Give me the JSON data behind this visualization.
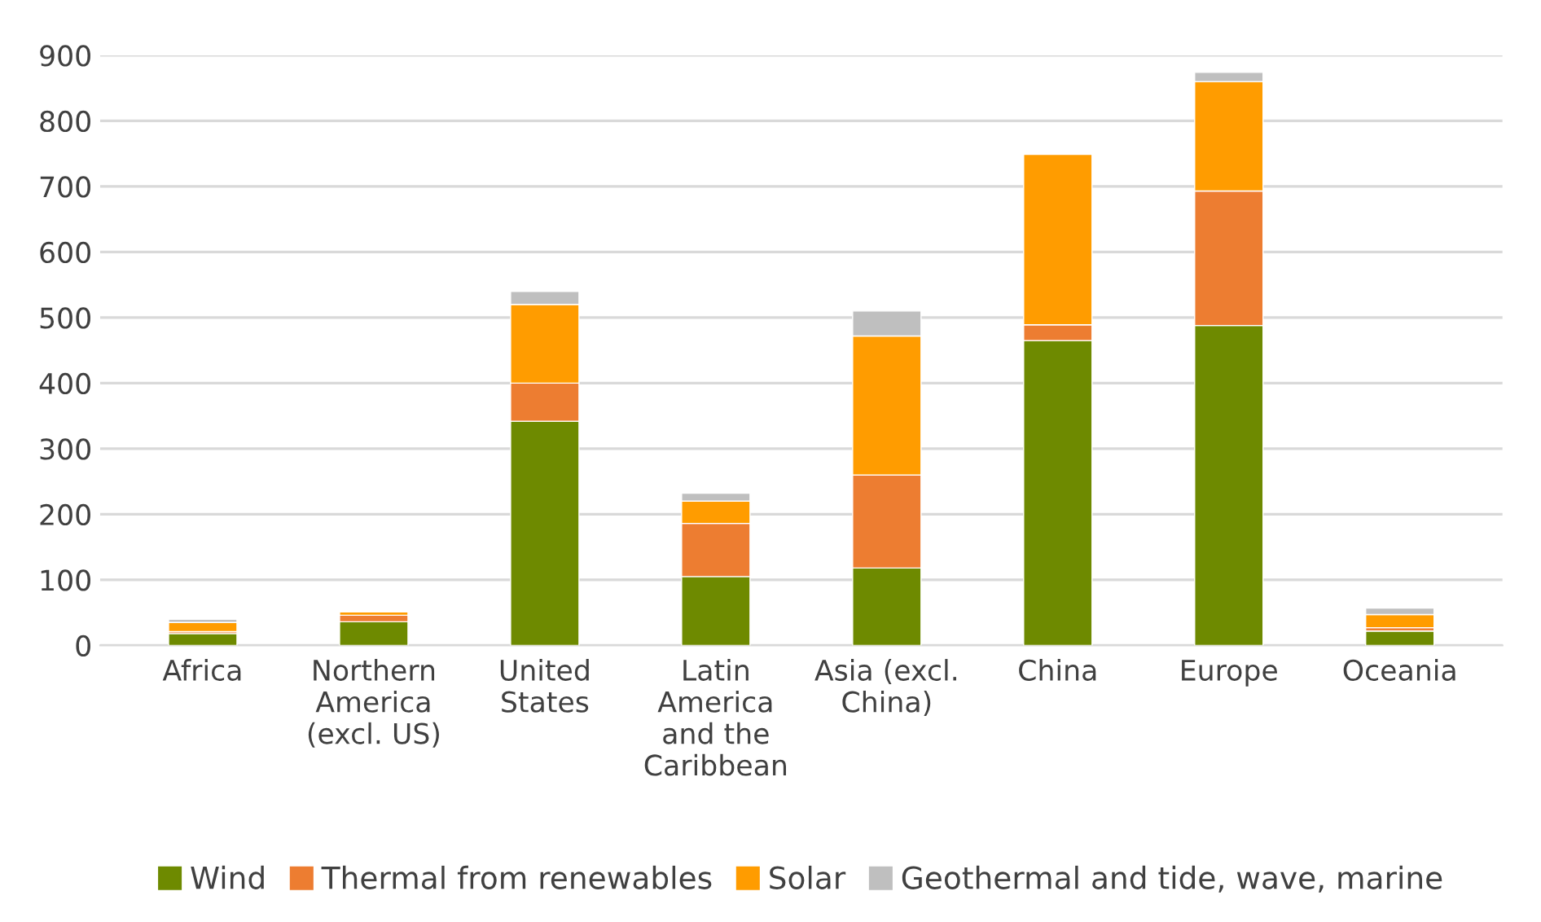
{
  "chart_data": {
    "type": "bar",
    "stacked": true,
    "categories": [
      "Africa",
      "Northern\nAmerica\n(excl. US)",
      "United\nStates",
      "Latin\nAmerica\nand the\nCaribbean",
      "Asia (excl.\nChina)",
      "China",
      "Europe",
      "Oceania"
    ],
    "series": [
      {
        "name": "Wind",
        "color": "#6e8a00",
        "values": [
          18,
          36,
          342,
          105,
          118,
          465,
          488,
          22
        ]
      },
      {
        "name": "Thermal from renewables",
        "color": "#ed7d31",
        "values": [
          3,
          10,
          58,
          81,
          142,
          24,
          205,
          5
        ]
      },
      {
        "name": "Solar",
        "color": "#ff9c00",
        "values": [
          14,
          5,
          120,
          34,
          212,
          260,
          167,
          20
        ]
      },
      {
        "name": "Geothermal and tide, wave, marine",
        "color": "#bfbfbf",
        "values": [
          5,
          null,
          20,
          12,
          38,
          null,
          14,
          10
        ]
      }
    ],
    "ylim": [
      0,
      900
    ],
    "yticks": [
      0,
      100,
      200,
      300,
      400,
      500,
      600,
      700,
      800,
      900
    ],
    "grid": "y",
    "legend": "bottom"
  }
}
